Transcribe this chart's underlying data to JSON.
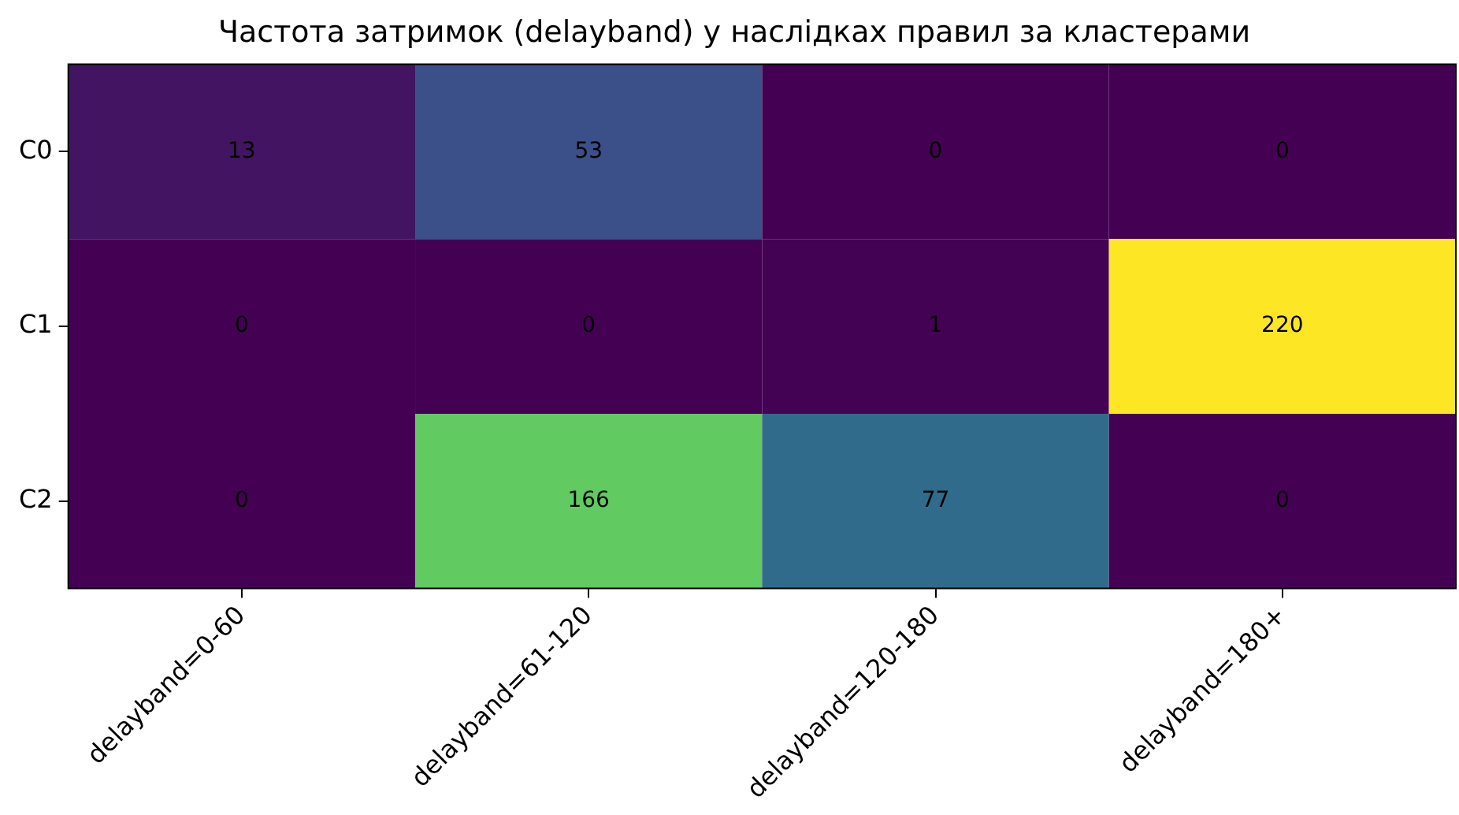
{
  "chart_data": {
    "type": "heatmap",
    "title": "Частота затримок (delayband) у наслідках правил за кластерами",
    "categories": [
      "delayband=0-60",
      "delayband=61-120",
      "delayband=120-180",
      "delayband=180+"
    ],
    "y_categories": [
      "C0",
      "C1",
      "C2"
    ],
    "cells": [
      [
        13,
        53,
        0,
        0
      ],
      [
        0,
        0,
        1,
        220
      ],
      [
        0,
        166,
        77,
        0
      ]
    ],
    "data_labels": true
  }
}
